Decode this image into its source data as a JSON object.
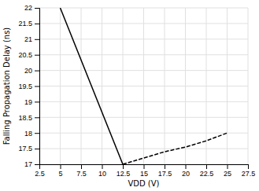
{
  "chart_data": {
    "type": "line",
    "xlabel": "VDD (V)",
    "ylabel": "Falling Propagation Delay (ns)",
    "xlim": [
      2.5,
      27.5
    ],
    "ylim": [
      17,
      22
    ],
    "xticks": [
      2.5,
      5.0,
      7.5,
      10.0,
      12.5,
      15.0,
      17.5,
      20.0,
      22.5,
      25.0,
      27.5
    ],
    "yticks": [
      17,
      17.5,
      18,
      18.5,
      19,
      19.5,
      20,
      20.5,
      21,
      21.5,
      22
    ],
    "grid": true,
    "series": [
      {
        "x": [
          5.0,
          12.5
        ],
        "values": [
          22.0,
          17.0
        ],
        "color": "#000000",
        "line_style": "solid"
      },
      {
        "x": [
          12.5,
          15.0,
          17.5,
          20.0,
          22.5,
          25.0
        ],
        "values": [
          17.0,
          17.2,
          17.4,
          17.55,
          17.75,
          18.0
        ],
        "color": "#000000",
        "line_style": "dashed"
      }
    ]
  }
}
